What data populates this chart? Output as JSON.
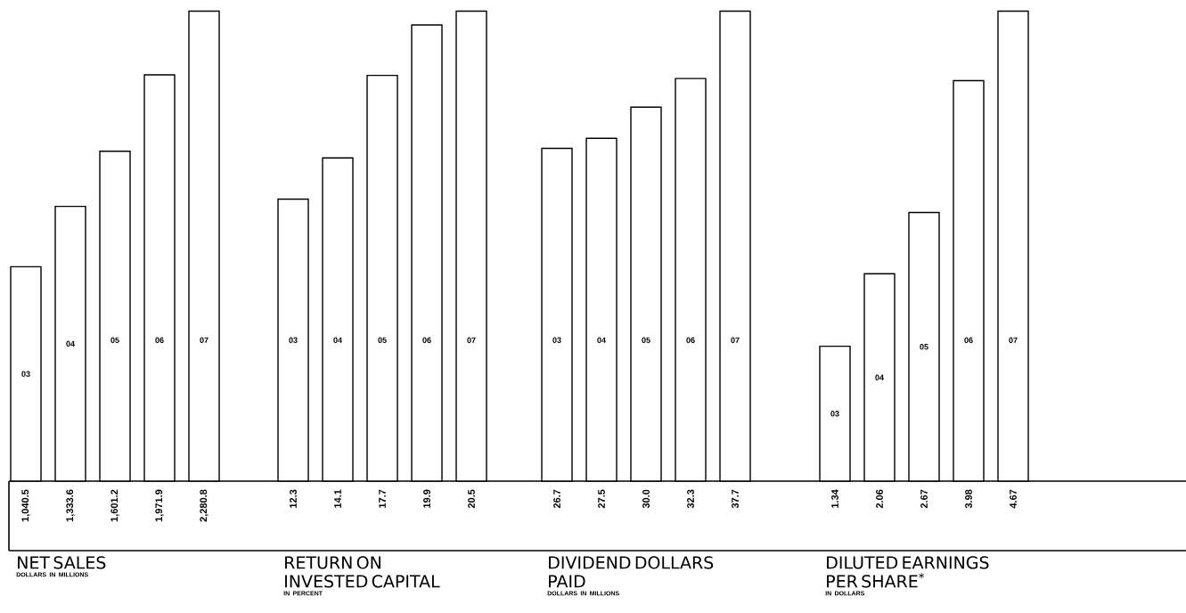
{
  "chart_data": [
    {
      "type": "bar",
      "title": "NET SALES",
      "subtitle": "DOLLARS IN MILLIONS",
      "categories": [
        "03",
        "04",
        "05",
        "06",
        "07"
      ],
      "values": [
        1040.5,
        1333.6,
        1601.2,
        1971.9,
        2280.8
      ],
      "value_labels": [
        "1,040.5",
        "1,333.6",
        "1,601.2",
        "1,971.9",
        "2,280.8"
      ],
      "color": "#ffffff"
    },
    {
      "type": "bar",
      "title": "RETURN ON INVESTED CAPITAL",
      "subtitle": "IN PERCENT",
      "categories": [
        "03",
        "04",
        "05",
        "06",
        "07"
      ],
      "values": [
        12.3,
        14.1,
        17.7,
        19.9,
        20.5
      ],
      "value_labels": [
        "12.3",
        "14.1",
        "17.7",
        "19.9",
        "20.5"
      ],
      "color": "#ffffff"
    },
    {
      "type": "bar",
      "title": "DIVIDEND DOLLARS PAID",
      "subtitle": "DOLLARS IN MILLIONS",
      "categories": [
        "03",
        "04",
        "05",
        "06",
        "07"
      ],
      "values": [
        26.7,
        27.5,
        30.0,
        32.3,
        37.7
      ],
      "value_labels": [
        "26.7",
        "27.5",
        "30.0",
        "32.3",
        "37.7"
      ],
      "color": "#ffffff"
    },
    {
      "type": "bar",
      "title": "DILUTED EARNINGS PER SHARE$^{*}$",
      "subtitle": "IN DOLLARS",
      "categories": [
        "03",
        "04",
        "05",
        "06",
        "07"
      ],
      "values": [
        1.34,
        2.06,
        2.67,
        3.98,
        4.67
      ],
      "value_labels": [
        "1.34",
        "2.06",
        "2.67",
        "3.98",
        "4.67"
      ],
      "color": "#ffffff"
    }
  ]
}
